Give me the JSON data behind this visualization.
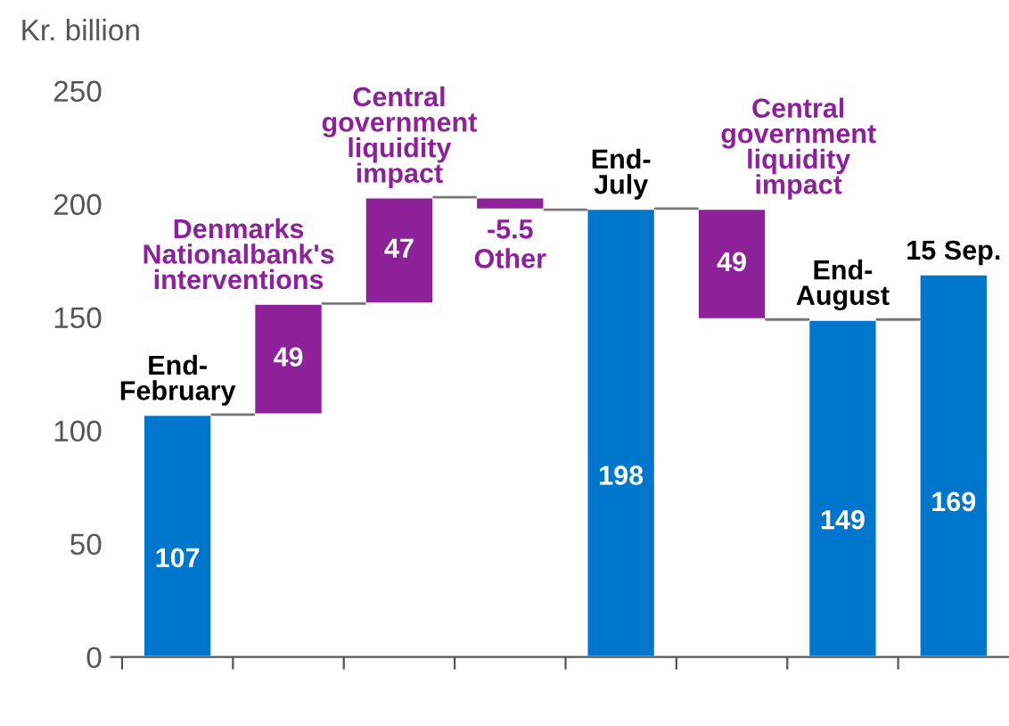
{
  "chart_data": {
    "type": "bar",
    "ylabel": "Kr. billion",
    "categories": [
      null,
      null,
      null,
      null,
      null,
      null,
      null,
      null
    ],
    "annotations": [
      "End-\nFebruary",
      "Denmarks\nNationalbank's\ninterventions",
      "Central\ngovernment\nliquidity\nimpact",
      "Other",
      "End-\nJuly",
      "Central\ngovernment\nliquidity\nimpact",
      "End-\nAugust",
      "15 Sep."
    ],
    "values": [
      107,
      49,
      47,
      -5.5,
      198,
      -49,
      149,
      169
    ],
    "base": [
      0,
      107,
      156,
      203,
      0,
      198,
      0,
      0
    ],
    "colors": [
      "#0077cc",
      "#8c2199",
      "#8c2199",
      "#8c2199",
      "#0077cc",
      "#8c2199",
      "#0077cc",
      "#0077cc"
    ],
    "value_labels": [
      "107",
      "49",
      "47",
      "-5.5",
      "198",
      "49",
      "149",
      "169"
    ],
    "ylim": [
      0,
      250
    ],
    "yticks": [
      0,
      50,
      100,
      150,
      200,
      250
    ],
    "grid": false,
    "legend": false
  }
}
